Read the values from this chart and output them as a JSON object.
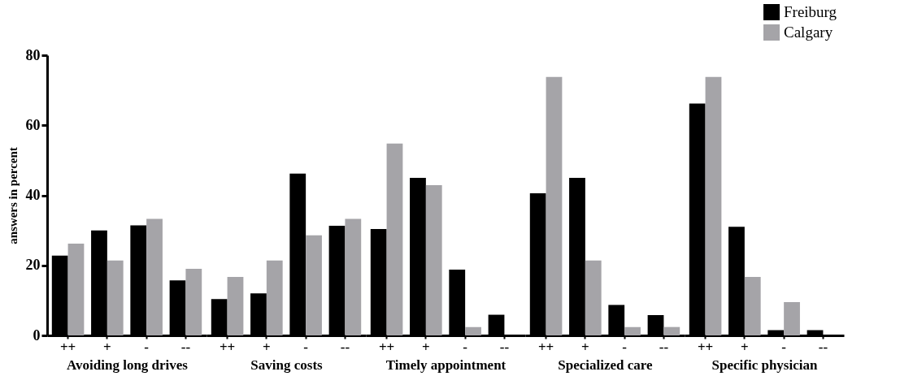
{
  "chart_data": [
    {
      "type": "bar",
      "categories": [
        "++",
        "+",
        "-",
        "--"
      ],
      "xlabel": "Avoiding long drives",
      "ylabel": "answers in percent",
      "ylim": [
        0,
        80
      ],
      "yticks": [
        0,
        20,
        40,
        60,
        80
      ],
      "series": [
        {
          "color": "#000000",
          "values": [
            22.8,
            30,
            31.4,
            15.7
          ]
        },
        {
          "color": "#a5a4a8",
          "values": [
            26.2,
            21.4,
            33.3,
            19
          ]
        }
      ]
    },
    {
      "type": "bar",
      "categories": [
        "++",
        "+",
        "-",
        "--"
      ],
      "xlabel": "Saving costs",
      "ylim": [
        0,
        80
      ],
      "yticks": [
        0,
        20,
        40,
        60,
        80
      ],
      "tick_labels": "x",
      "series": [
        {
          "color": "#000000",
          "values": [
            10.4,
            12,
            46.2,
            31.3
          ]
        },
        {
          "color": "#a5a4a8",
          "values": [
            16.7,
            21.4,
            28.6,
            33.3
          ]
        }
      ]
    },
    {
      "type": "bar",
      "categories": [
        "++",
        "+",
        "-",
        "--"
      ],
      "xlabel": "Timely appointment",
      "ylim": [
        0,
        80
      ],
      "yticks": [
        0,
        20,
        40,
        60,
        80
      ],
      "tick_labels": "x",
      "series": [
        {
          "color": "#000000",
          "values": [
            30.4,
            45,
            18.8,
            5.9
          ]
        },
        {
          "color": "#a5a4a8",
          "values": [
            54.8,
            42.9,
            2.4,
            0
          ]
        }
      ]
    },
    {
      "type": "bar",
      "categories": [
        "++",
        "+",
        "-",
        "--"
      ],
      "xlabel": "Specialized care",
      "ylim": [
        0,
        80
      ],
      "yticks": [
        0,
        20,
        40,
        60,
        80
      ],
      "tick_labels": "x",
      "series": [
        {
          "color": "#000000",
          "values": [
            40.6,
            45,
            8.7,
            5.8
          ]
        },
        {
          "color": "#a5a4a8",
          "values": [
            73.8,
            21.4,
            2.4,
            2.4
          ]
        }
      ]
    },
    {
      "type": "bar",
      "categories": [
        "++",
        "+",
        "-",
        "--"
      ],
      "xlabel": "Specific physician",
      "ylim": [
        0,
        80
      ],
      "yticks": [
        0,
        20,
        40,
        60,
        80
      ],
      "tick_labels": "x",
      "legend": "top right",
      "series": [
        {
          "name": "Freiburg",
          "color": "#000000",
          "values": [
            66.2,
            31,
            1.5,
            1.5
          ]
        },
        {
          "name": "Calgary",
          "color": "#a5a4a8",
          "values": [
            73.8,
            16.7,
            9.5,
            0
          ]
        }
      ]
    }
  ]
}
